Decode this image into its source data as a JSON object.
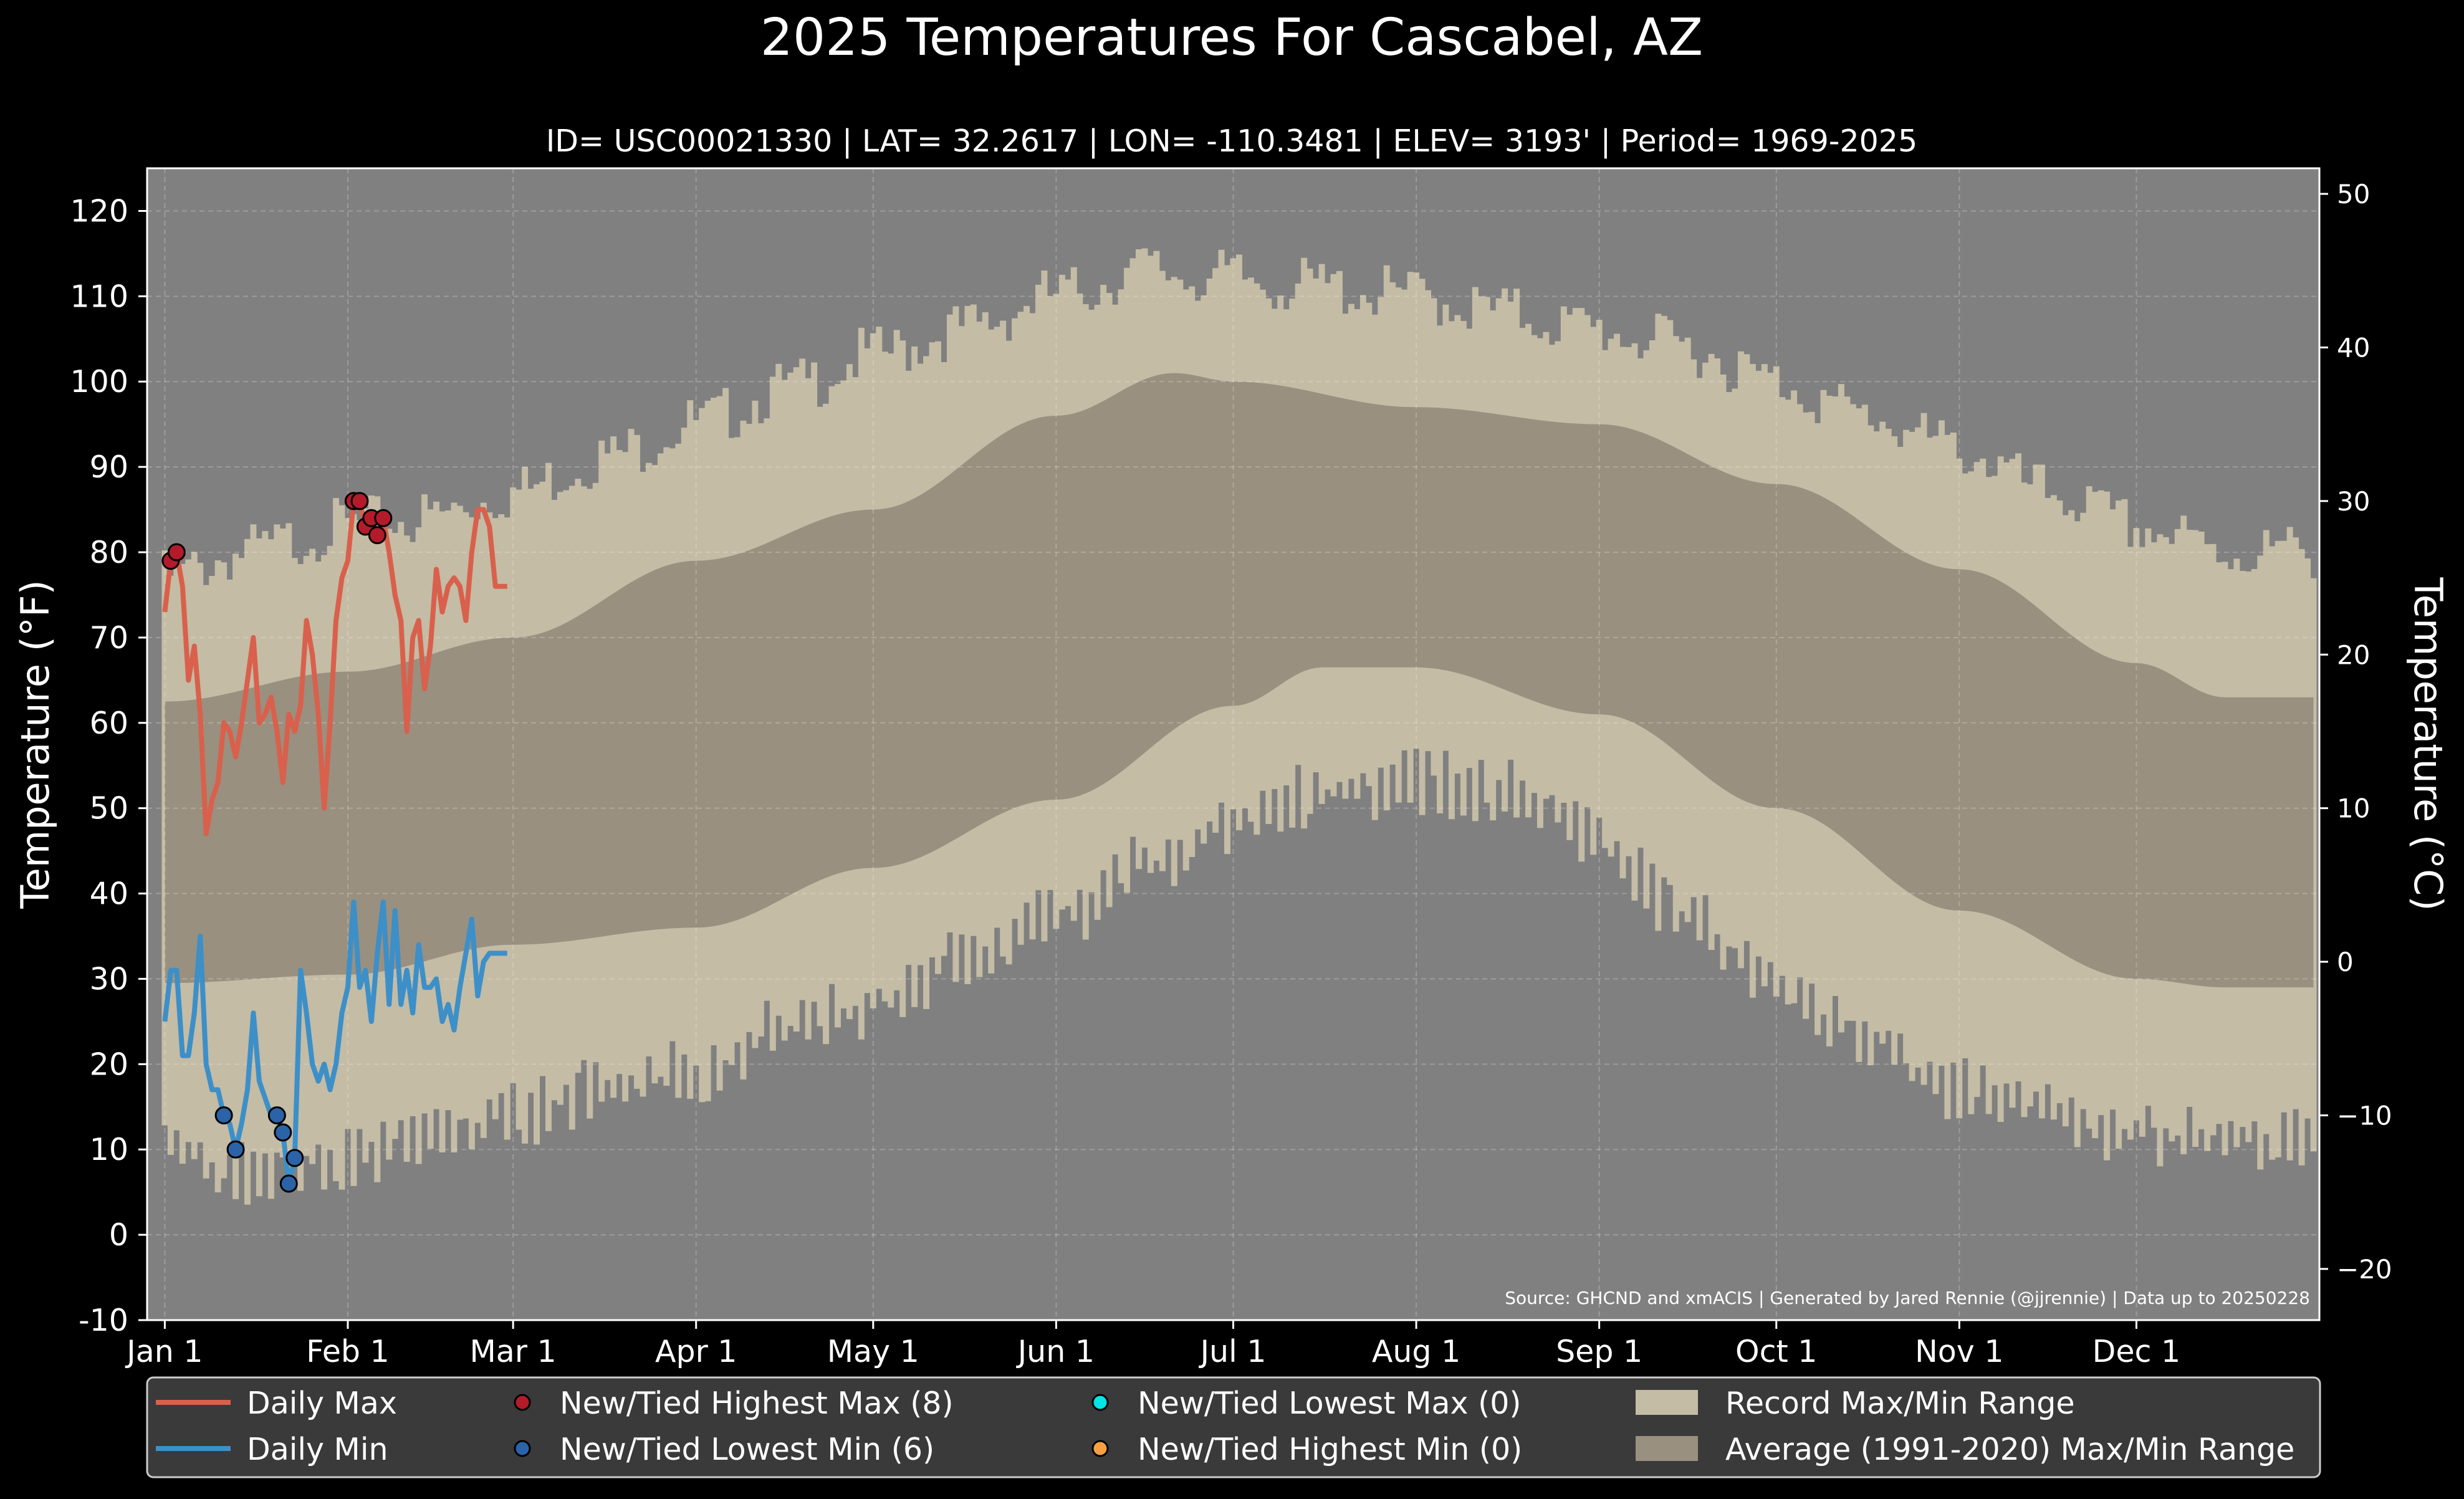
{
  "chart_data": {
    "type": "line",
    "title": "2025 Temperatures For Cascabel, AZ",
    "subtitle": "ID= USC00021330 | LAT= 32.2617 | LON= -110.3481 | ELEV= 3193' | Period= 1969-2025",
    "ylabel_left": "Temperature ($^\\circ$F)",
    "ylabel_left_display": "Temperature (°F)",
    "ylabel_right": "Temperature (°C)",
    "source": "Source: GHCND and xmACIS | Generated by Jared Rennie (@jjrennie) | Data up to 20250228",
    "ylim_f": [
      -10,
      125
    ],
    "yticks_f": [
      -10,
      0,
      10,
      20,
      30,
      40,
      50,
      60,
      70,
      80,
      90,
      100,
      110,
      120
    ],
    "yticks_c": [
      -20,
      -10,
      0,
      10,
      20,
      30,
      40,
      50
    ],
    "xlim_days": [
      -2,
      366
    ],
    "xticks": [
      {
        "day": 1,
        "label": "Jan 1"
      },
      {
        "day": 32,
        "label": "Feb 1"
      },
      {
        "day": 60,
        "label": "Mar 1"
      },
      {
        "day": 91,
        "label": "Apr 1"
      },
      {
        "day": 121,
        "label": "May 1"
      },
      {
        "day": 152,
        "label": "Jun 1"
      },
      {
        "day": 182,
        "label": "Jul 1"
      },
      {
        "day": 213,
        "label": "Aug 1"
      },
      {
        "day": 244,
        "label": "Sep 1"
      },
      {
        "day": 274,
        "label": "Oct 1"
      },
      {
        "day": 305,
        "label": "Nov 1"
      },
      {
        "day": 335,
        "label": "Dec 1"
      }
    ],
    "grid": true,
    "colors": {
      "background": "#000000",
      "plot_bg": "#808080",
      "record_range": "#c4bca5",
      "normal_range": "#999080",
      "daily_max": "#d9604c",
      "daily_min": "#3d8fc8",
      "record_high_marker": "#b31b2b",
      "record_low_marker": "#2b63a8",
      "lowest_max_marker": "#00e5e5",
      "highest_min_marker": "#f5a040",
      "legend_bg": "#3a3a3a"
    },
    "record_max_anchors": [
      [
        1,
        77
      ],
      [
        15,
        80
      ],
      [
        32,
        83
      ],
      [
        45,
        84
      ],
      [
        60,
        87
      ],
      [
        75,
        91
      ],
      [
        91,
        95
      ],
      [
        106,
        99
      ],
      [
        121,
        103
      ],
      [
        136,
        106
      ],
      [
        152,
        110
      ],
      [
        167,
        113
      ],
      [
        182,
        112
      ],
      [
        197,
        111
      ],
      [
        213,
        110
      ],
      [
        228,
        108
      ],
      [
        244,
        106
      ],
      [
        259,
        104
      ],
      [
        274,
        100
      ],
      [
        289,
        96
      ],
      [
        305,
        92
      ],
      [
        320,
        87
      ],
      [
        335,
        83
      ],
      [
        350,
        80
      ],
      [
        366,
        80
      ]
    ],
    "record_min_anchors": [
      [
        1,
        10
      ],
      [
        15,
        7
      ],
      [
        32,
        9
      ],
      [
        45,
        11
      ],
      [
        60,
        14
      ],
      [
        75,
        17
      ],
      [
        91,
        19
      ],
      [
        106,
        24
      ],
      [
        121,
        27
      ],
      [
        136,
        32
      ],
      [
        152,
        37
      ],
      [
        167,
        43
      ],
      [
        182,
        48
      ],
      [
        197,
        52
      ],
      [
        213,
        53
      ],
      [
        228,
        52
      ],
      [
        244,
        46
      ],
      [
        259,
        37
      ],
      [
        274,
        29
      ],
      [
        289,
        23
      ],
      [
        305,
        17
      ],
      [
        320,
        14
      ],
      [
        335,
        12
      ],
      [
        350,
        11
      ],
      [
        366,
        12
      ]
    ],
    "normal_max_anchors": [
      [
        1,
        62.5
      ],
      [
        32,
        66
      ],
      [
        60,
        70
      ],
      [
        91,
        79
      ],
      [
        121,
        85
      ],
      [
        152,
        96
      ],
      [
        172,
        101
      ],
      [
        182,
        100
      ],
      [
        213,
        97
      ],
      [
        244,
        95
      ],
      [
        274,
        88
      ],
      [
        305,
        78
      ],
      [
        335,
        67
      ],
      [
        350,
        63
      ],
      [
        366,
        63
      ]
    ],
    "normal_min_anchors": [
      [
        1,
        29.5
      ],
      [
        32,
        30.5
      ],
      [
        60,
        34
      ],
      [
        91,
        36
      ],
      [
        121,
        43
      ],
      [
        152,
        51
      ],
      [
        182,
        62
      ],
      [
        197,
        66.5
      ],
      [
        213,
        66.5
      ],
      [
        244,
        61
      ],
      [
        274,
        50
      ],
      [
        305,
        38
      ],
      [
        335,
        30
      ],
      [
        350,
        29
      ],
      [
        366,
        29
      ]
    ],
    "series": [
      {
        "name": "Daily Max",
        "x": [
          1,
          2,
          3,
          4,
          5,
          6,
          7,
          8,
          9,
          10,
          11,
          12,
          13,
          14,
          15,
          16,
          17,
          18,
          19,
          20,
          21,
          22,
          23,
          24,
          25,
          26,
          27,
          28,
          29,
          30,
          31,
          32,
          33,
          34,
          35,
          36,
          37,
          38,
          39,
          40,
          41,
          42,
          43,
          44,
          45,
          46,
          47,
          48,
          49,
          50,
          51,
          52,
          53,
          54,
          55,
          56,
          57,
          58,
          59
        ],
        "values": [
          73,
          79,
          80,
          76,
          65,
          69,
          61,
          47,
          51,
          53,
          60,
          59,
          56,
          60,
          65,
          70,
          60,
          61,
          63,
          59,
          53,
          61,
          59,
          62,
          72,
          68,
          61,
          50,
          60,
          72,
          77,
          79,
          86,
          86,
          83,
          84,
          82,
          84,
          80,
          75,
          72,
          59,
          70,
          72,
          64,
          69,
          78,
          73,
          76,
          77,
          76,
          72,
          80,
          85,
          85,
          83,
          76,
          76,
          76
        ]
      },
      {
        "name": "Daily Min",
        "x": [
          1,
          2,
          3,
          4,
          5,
          6,
          7,
          8,
          9,
          10,
          11,
          12,
          13,
          14,
          15,
          16,
          17,
          18,
          19,
          20,
          21,
          22,
          23,
          24,
          25,
          26,
          27,
          28,
          29,
          30,
          31,
          32,
          33,
          34,
          35,
          36,
          37,
          38,
          39,
          40,
          41,
          42,
          43,
          44,
          45,
          46,
          47,
          48,
          49,
          50,
          51,
          52,
          53,
          54,
          55,
          56,
          57,
          58,
          59
        ],
        "values": [
          25,
          31,
          31,
          21,
          21,
          26,
          35,
          20,
          17,
          17,
          14,
          13,
          10,
          13,
          17,
          26,
          18,
          16,
          14,
          14,
          12,
          6,
          9,
          31,
          26,
          20,
          18,
          20,
          17,
          20,
          26,
          29,
          39,
          29,
          31,
          25,
          33,
          39,
          27,
          38,
          27,
          31,
          26,
          34,
          29,
          29,
          30,
          25,
          27,
          24,
          29,
          33,
          37,
          28,
          32,
          33,
          33,
          33,
          33
        ]
      }
    ],
    "new_highest_max": {
      "x": [
        2,
        3,
        33,
        34,
        35,
        36,
        37,
        38
      ],
      "values": [
        79,
        80,
        86,
        86,
        83,
        84,
        82,
        84
      ]
    },
    "new_lowest_min": {
      "x": [
        11,
        13,
        20,
        21,
        22,
        23
      ],
      "values": [
        14,
        10,
        14,
        12,
        6,
        9
      ]
    },
    "legend": [
      {
        "label": "Daily Max",
        "kind": "line",
        "color": "#d9604c"
      },
      {
        "label": "Daily Min",
        "kind": "line",
        "color": "#3d8fc8"
      },
      {
        "label": "New/Tied Highest Max (8)",
        "kind": "marker",
        "color": "#b31b2b"
      },
      {
        "label": "New/Tied Lowest Min (6)",
        "kind": "marker",
        "color": "#2b63a8"
      },
      {
        "label": "New/Tied Lowest Max (0)",
        "kind": "marker",
        "color": "#00e5e5"
      },
      {
        "label": "New/Tied Highest Min (0)",
        "kind": "marker",
        "color": "#f5a040"
      },
      {
        "label": "Record Max/Min Range",
        "kind": "patch",
        "color": "#c4bca5"
      },
      {
        "label": "Average (1991-2020) Max/Min Range",
        "kind": "patch",
        "color": "#999080"
      }
    ]
  }
}
